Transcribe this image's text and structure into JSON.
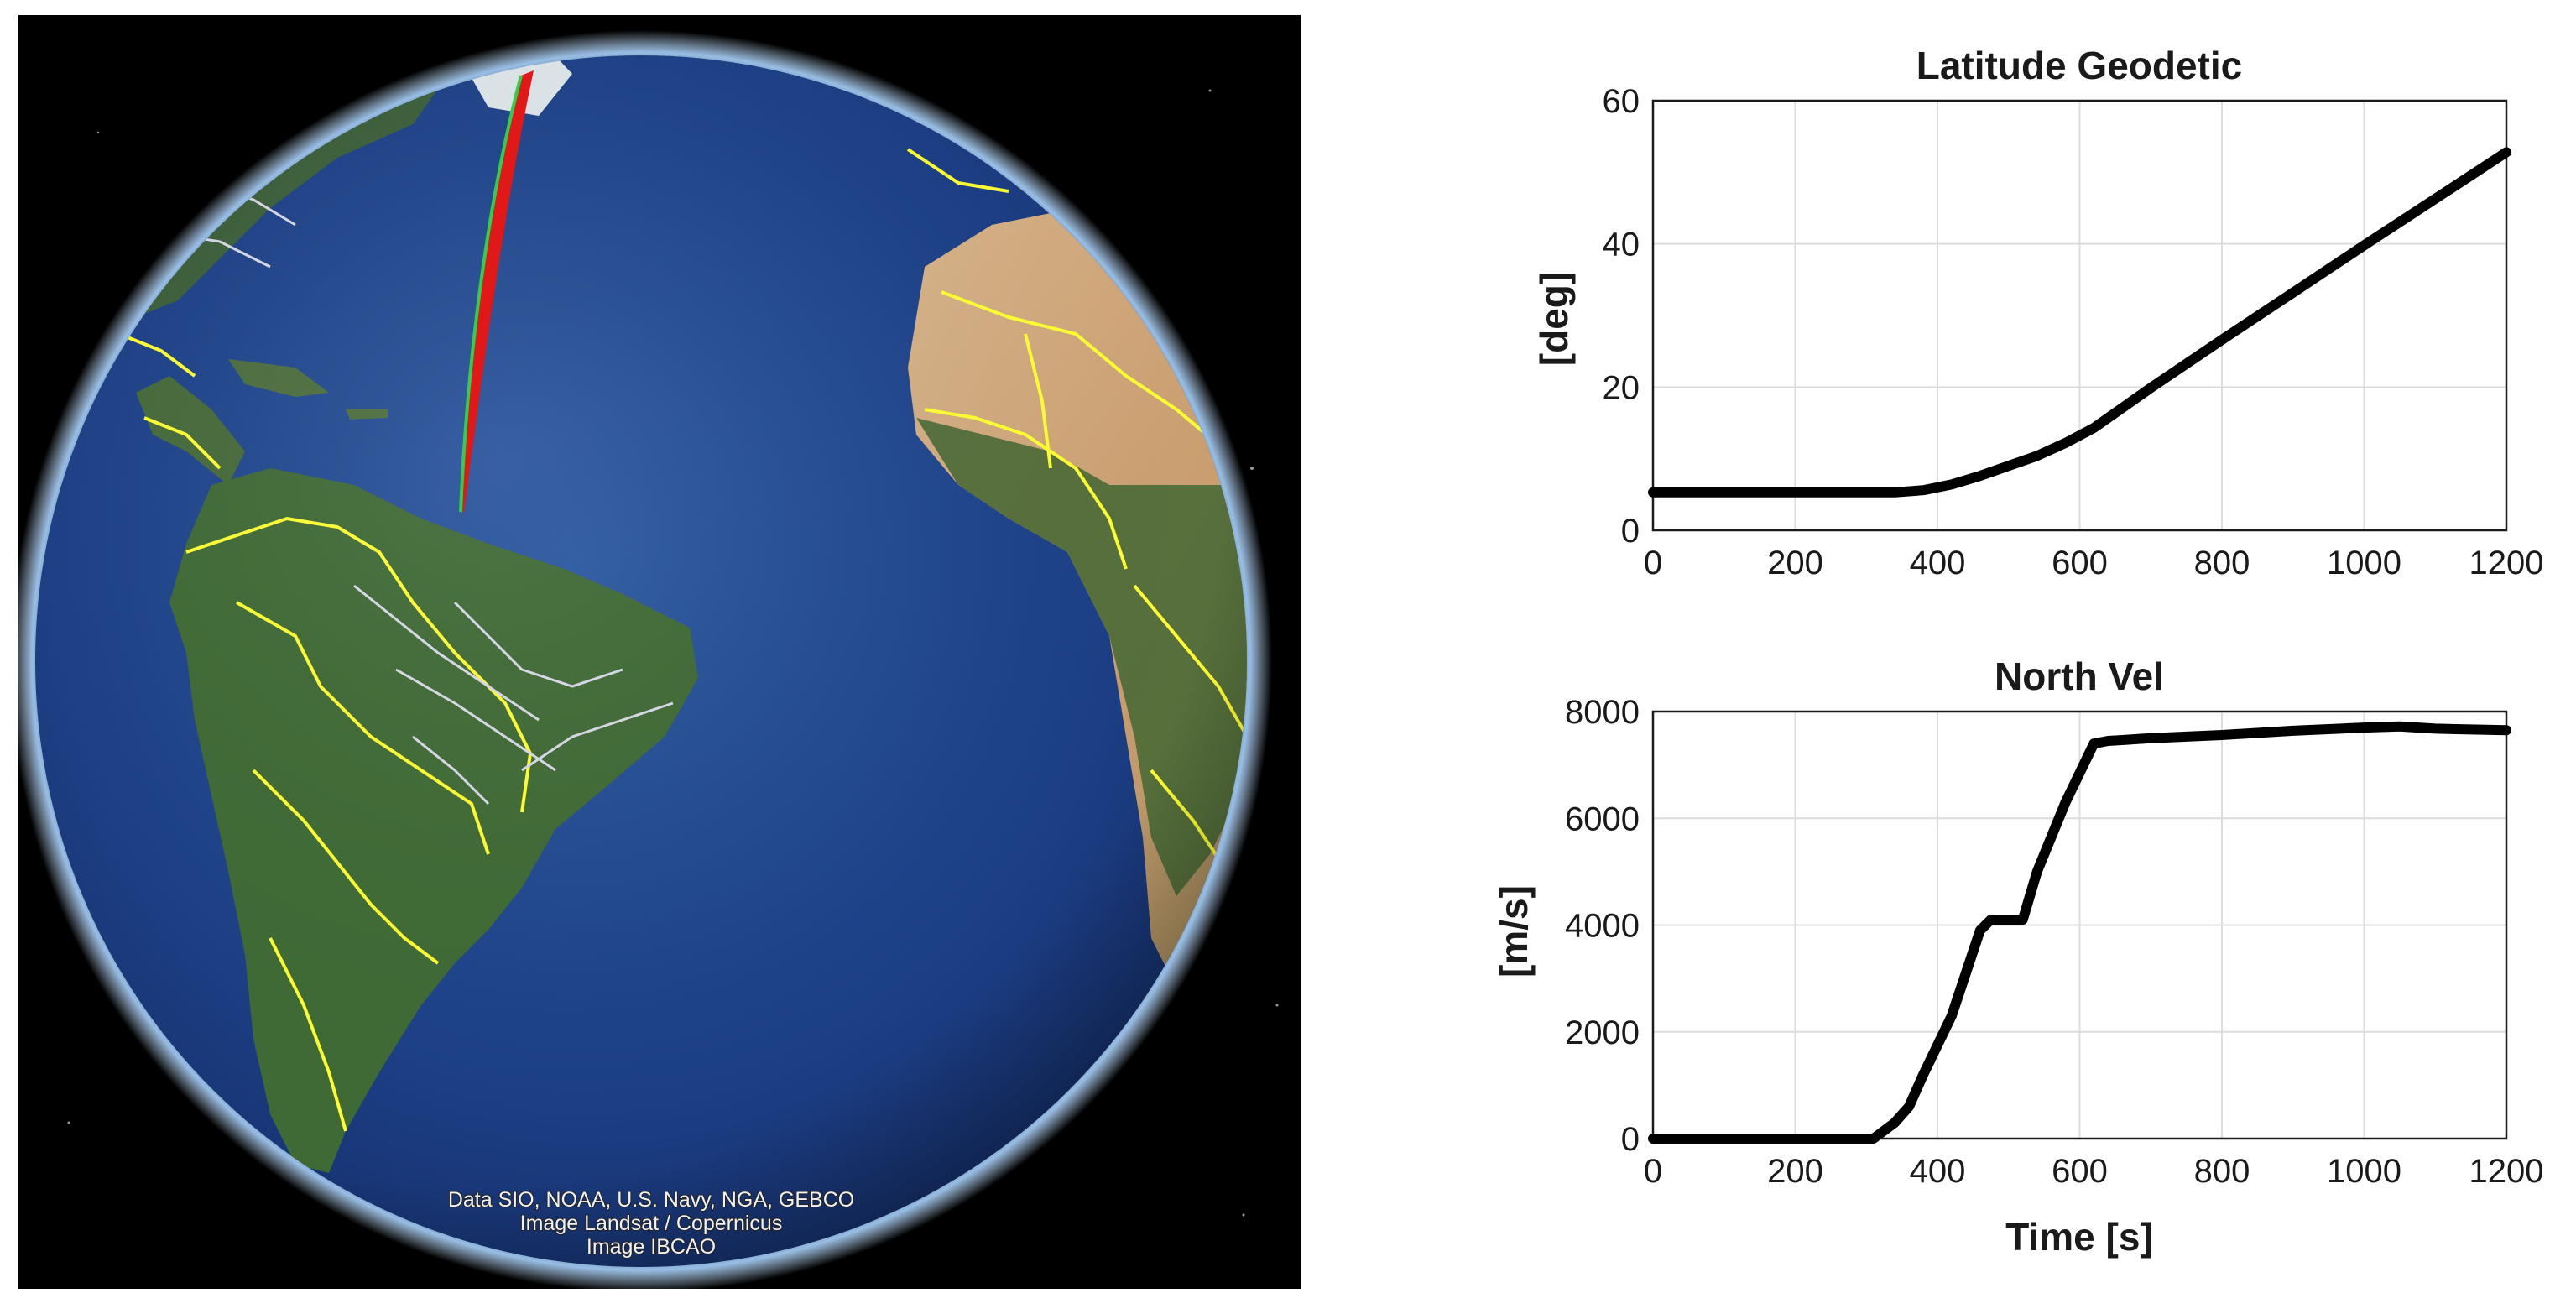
{
  "globe": {
    "attribution": [
      "Data SIO, NOAA, U.S. Navy, NGA, GEBCO",
      "Image Landsat / Copernicus",
      "Image IBCAO"
    ]
  },
  "chart_data": [
    {
      "type": "line",
      "title": "Latitude Geodetic",
      "xlabel": "",
      "ylabel": "[deg]",
      "xlim": [
        0,
        1200
      ],
      "ylim": [
        0,
        60
      ],
      "xticks": [
        "0",
        "200",
        "400",
        "600",
        "800",
        "1000",
        "1200"
      ],
      "yticks": [
        "0",
        "20",
        "40",
        "60"
      ],
      "grid": true,
      "x": [
        0,
        100,
        200,
        300,
        340,
        380,
        420,
        460,
        500,
        540,
        580,
        620,
        700,
        800,
        900,
        1000,
        1100,
        1200
      ],
      "y": [
        5.3,
        5.3,
        5.3,
        5.3,
        5.3,
        5.6,
        6.4,
        7.6,
        9.0,
        10.4,
        12.2,
        14.3,
        19.9,
        26.6,
        33.2,
        39.8,
        46.3,
        52.8
      ]
    },
    {
      "type": "line",
      "title": "North Vel",
      "xlabel": "Time [s]",
      "ylabel": "[m/s]",
      "xlim": [
        0,
        1200
      ],
      "ylim": [
        0,
        8000
      ],
      "xticks": [
        "0",
        "200",
        "400",
        "600",
        "800",
        "1000",
        "1200"
      ],
      "yticks": [
        "0",
        "2000",
        "4000",
        "6000",
        "8000"
      ],
      "grid": true,
      "x": [
        0,
        100,
        200,
        300,
        310,
        340,
        360,
        380,
        420,
        460,
        475,
        490,
        520,
        540,
        580,
        620,
        640,
        700,
        800,
        900,
        1000,
        1050,
        1100,
        1200
      ],
      "y": [
        0,
        0,
        0,
        0,
        0,
        300,
        600,
        1200,
        2300,
        3900,
        4100,
        4100,
        4100,
        5000,
        6300,
        7400,
        7450,
        7500,
        7560,
        7640,
        7700,
        7720,
        7680,
        7650
      ]
    }
  ]
}
